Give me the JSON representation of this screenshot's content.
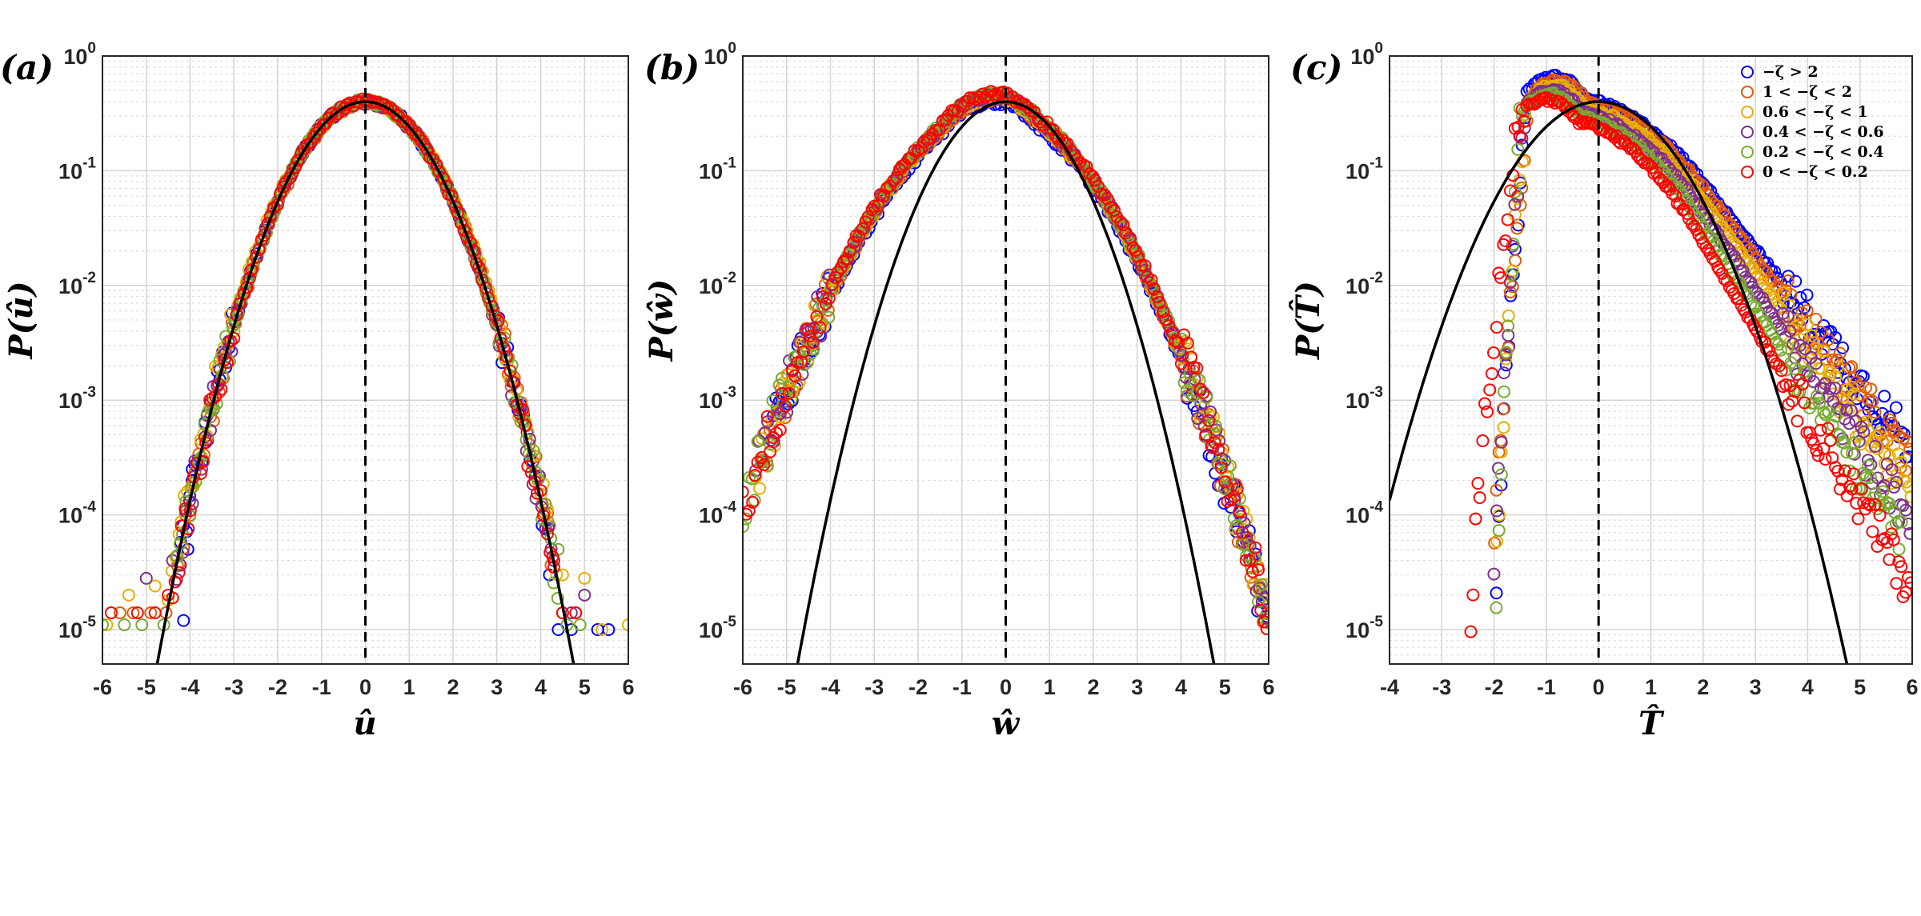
{
  "chart_data": [
    {
      "type": "scatter",
      "panel_label": "(a)",
      "xlabel": "û",
      "ylabel": "P(û)",
      "xlim": [
        -6,
        6
      ],
      "ylim_log10": [
        -5.3,
        0
      ],
      "xticks": [
        "-6",
        "-5",
        "-4",
        "-3",
        "-2",
        "-1",
        "0",
        "1",
        "2",
        "3",
        "4",
        "5",
        "6"
      ],
      "yticks": [
        {
          "base": "10",
          "exp": "0"
        },
        {
          "base": "10",
          "exp": "-1"
        },
        {
          "base": "10",
          "exp": "-2"
        },
        {
          "base": "10",
          "exp": "-3"
        },
        {
          "base": "10",
          "exp": "-4"
        },
        {
          "base": "10",
          "exp": "-5"
        }
      ],
      "grid": true,
      "reference_line_x": 0,
      "gaussian_reference": {
        "mean": 0,
        "std": 1
      },
      "series": [
        {
          "name": "−ζ > 2",
          "color": "#0000ff",
          "mean": 0.0,
          "std": 1.0,
          "tail_left": -4.3,
          "tail_right": 4.2,
          "tail_pts_left": [
            [
              -3.95,
              0.00025
            ],
            [
              -4.05,
              5e-05
            ],
            [
              -4.15,
              1.2e-05
            ]
          ],
          "tail_pts_right": [
            [
              4.2,
              3e-05
            ],
            [
              4.4,
              1e-05
            ],
            [
              4.7,
              1e-05
            ],
            [
              5.3,
              1e-05
            ],
            [
              5.55,
              1e-05
            ]
          ]
        },
        {
          "name": "1 < −ζ < 2",
          "color": "#e65a00",
          "mean": 0.02,
          "std": 1.0,
          "tail_left": -4.3,
          "tail_right": 4.3,
          "tail_pts_left": [
            [
              -5.6,
              1.4e-05
            ],
            [
              -5.3,
              1.4e-05
            ],
            [
              -4.9,
              1.4e-05
            ],
            [
              -4.55,
              1.4e-05
            ],
            [
              -4.1,
              0.0001
            ]
          ],
          "tail_pts_right": [
            [
              4.3,
              4e-05
            ],
            [
              4.5,
              1.4e-05
            ],
            [
              4.8,
              1.4e-05
            ]
          ]
        },
        {
          "name": "0.6 < −ζ < 1",
          "color": "#e6b000",
          "mean": 0.0,
          "std": 1.02,
          "tail_left": -4.4,
          "tail_right": 4.4,
          "tail_pts_left": [
            [
              -5.9,
              1.1e-05
            ],
            [
              -5.4,
              2e-05
            ],
            [
              -4.8,
              2.4e-05
            ],
            [
              -4.5,
              1.8e-05
            ]
          ],
          "tail_pts_right": [
            [
              4.5,
              3e-05
            ],
            [
              5.0,
              2.8e-05
            ],
            [
              5.4,
              1e-05
            ],
            [
              6.0,
              1.1e-05
            ]
          ]
        },
        {
          "name": "0.4 < −ζ < 0.6",
          "color": "#7e2f8e",
          "mean": 0.0,
          "std": 1.0,
          "tail_left": -4.3,
          "tail_right": 4.3,
          "tail_pts_left": [
            [
              -5.0,
              2.8e-05
            ],
            [
              -4.4,
              4e-05
            ]
          ],
          "tail_pts_right": [
            [
              4.3,
              4e-05
            ],
            [
              4.7,
              1.4e-05
            ],
            [
              5.0,
              2e-05
            ]
          ]
        },
        {
          "name": "0.2 < −ζ < 0.4",
          "color": "#77ac30",
          "mean": 0.0,
          "std": 1.0,
          "tail_left": -4.3,
          "tail_right": 4.4,
          "tail_pts_left": [
            [
              -6.0,
              1.1e-05
            ],
            [
              -5.5,
              1.1e-05
            ],
            [
              -5.1,
              1.1e-05
            ],
            [
              -4.6,
              1.1e-05
            ]
          ],
          "tail_pts_right": [
            [
              4.4,
              5e-05
            ],
            [
              4.6,
              1.1e-05
            ],
            [
              4.9,
              1.1e-05
            ]
          ]
        },
        {
          "name": "0 < −ζ < 0.2",
          "color": "#ff0000",
          "mean": 0.0,
          "std": 1.0,
          "tail_left": -4.4,
          "tail_right": 4.3,
          "tail_pts_left": [
            [
              -5.8,
              1.4e-05
            ],
            [
              -5.2,
              1.4e-05
            ],
            [
              -4.8,
              1.4e-05
            ],
            [
              -4.5,
              2e-05
            ]
          ],
          "tail_pts_right": [
            [
              4.3,
              3.5e-05
            ],
            [
              4.5,
              1.4e-05
            ],
            [
              4.8,
              1.4e-05
            ]
          ]
        }
      ]
    },
    {
      "type": "scatter",
      "panel_label": "(b)",
      "xlabel": "ŵ",
      "ylabel": "P(ŵ)",
      "xlim": [
        -6,
        6
      ],
      "ylim_log10": [
        -5.3,
        0
      ],
      "xticks": [
        "-6",
        "-5",
        "-4",
        "-3",
        "-2",
        "-1",
        "0",
        "1",
        "2",
        "3",
        "4",
        "5",
        "6"
      ],
      "yticks": [
        {
          "base": "10",
          "exp": "0"
        },
        {
          "base": "10",
          "exp": "-1"
        },
        {
          "base": "10",
          "exp": "-2"
        },
        {
          "base": "10",
          "exp": "-3"
        },
        {
          "base": "10",
          "exp": "-4"
        },
        {
          "base": "10",
          "exp": "-5"
        }
      ],
      "grid": true,
      "reference_line_x": 0,
      "gaussian_reference": {
        "mean": 0,
        "std": 1
      },
      "series": [
        {
          "name": "−ζ > 2",
          "color": "#0000ff",
          "skew": 0.3,
          "left_slope": 2.85,
          "right_slope": 2.25,
          "tail_left": -5.3,
          "tail_right": 6.0,
          "peak": 0.4
        },
        {
          "name": "1 < −ζ < 2",
          "color": "#e65a00",
          "skew": 0.35,
          "left_slope": 2.75,
          "right_slope": 2.3,
          "tail_left": -5.6,
          "tail_right": 6.0,
          "peak": 0.43
        },
        {
          "name": "0.6 < −ζ < 1",
          "color": "#e6b000",
          "skew": 0.38,
          "left_slope": 2.7,
          "right_slope": 2.25,
          "tail_left": -5.7,
          "tail_right": 6.0,
          "peak": 0.44
        },
        {
          "name": "0.4 < −ζ < 0.6",
          "color": "#7e2f8e",
          "skew": 0.4,
          "left_slope": 2.65,
          "right_slope": 2.3,
          "tail_left": -5.7,
          "tail_right": 6.0,
          "peak": 0.45
        },
        {
          "name": "0.2 < −ζ < 0.4",
          "color": "#77ac30",
          "skew": 0.42,
          "left_slope": 2.6,
          "right_slope": 2.3,
          "tail_left": -6.0,
          "tail_right": 6.0,
          "peak": 0.46
        },
        {
          "name": "0 < −ζ < 0.2",
          "color": "#ff0000",
          "skew": 0.45,
          "left_slope": 2.55,
          "right_slope": 2.35,
          "tail_left": -6.0,
          "tail_right": 6.0,
          "peak": 0.47
        }
      ]
    },
    {
      "type": "scatter",
      "panel_label": "(c)",
      "xlabel": "T̂",
      "ylabel": "P(T̂)",
      "xlim": [
        -4,
        6
      ],
      "ylim_log10": [
        -5.3,
        0
      ],
      "xticks": [
        "-4",
        "-3",
        "-2",
        "-1",
        "0",
        "1",
        "2",
        "3",
        "4",
        "5",
        "6"
      ],
      "yticks": [
        {
          "base": "10",
          "exp": "0"
        },
        {
          "base": "10",
          "exp": "-1"
        },
        {
          "base": "10",
          "exp": "-2"
        },
        {
          "base": "10",
          "exp": "-3"
        },
        {
          "base": "10",
          "exp": "-4"
        },
        {
          "base": "10",
          "exp": "-5"
        }
      ],
      "grid": true,
      "reference_line_x": 0,
      "gaussian_reference": {
        "mean": 0,
        "std": 1
      },
      "legend": {
        "location": "top-right",
        "entries": [
          "−ζ > 2",
          "1 < −ζ < 2",
          "0.6 < −ζ < 1",
          "0.4 < −ζ < 0.6",
          "0.2 < −ζ < 0.4",
          "0 < −ζ < 0.2"
        ]
      },
      "series": [
        {
          "name": "−ζ > 2",
          "color": "#0000ff",
          "peak_x": -0.85,
          "peak": 0.66,
          "left_edge": -1.95,
          "left_floor": 1.8e-05,
          "right_slope": 1.18,
          "tail_right": 5.95,
          "tail_floor": 3e-05
        },
        {
          "name": "1 < −ζ < 2",
          "color": "#e65a00",
          "peak_x": -0.8,
          "peak": 0.6,
          "left_edge": -2.0,
          "left_floor": 4e-05,
          "right_slope": 1.25,
          "tail_right": 6.0,
          "tail_floor": 5e-05
        },
        {
          "name": "0.6 < −ζ < 1",
          "color": "#e6b000",
          "peak_x": -0.85,
          "peak": 0.55,
          "left_edge": -1.95,
          "left_floor": 4e-05,
          "right_slope": 1.32,
          "tail_right": 6.0,
          "tail_floor": 6e-05
        },
        {
          "name": "0.4 < −ζ < 0.6",
          "color": "#7e2f8e",
          "peak_x": -0.9,
          "peak": 0.5,
          "left_edge": -2.0,
          "left_floor": 2e-05,
          "right_slope": 1.4,
          "tail_right": 6.0,
          "tail_floor": 4e-05
        },
        {
          "name": "0.2 < −ζ < 0.4",
          "color": "#77ac30",
          "peak_x": -0.95,
          "peak": 0.46,
          "left_edge": -1.95,
          "left_floor": 1.5e-05,
          "right_slope": 1.5,
          "tail_right": 5.8,
          "tail_floor": 2e-05
        },
        {
          "name": "0 < −ζ < 0.2",
          "color": "#ff0000",
          "peak_x": -1.0,
          "peak": 0.42,
          "left_edge": -2.45,
          "left_floor": 1.1e-05,
          "right_slope": 1.6,
          "tail_right": 6.0,
          "tail_floor": 1.8e-05
        }
      ]
    }
  ]
}
